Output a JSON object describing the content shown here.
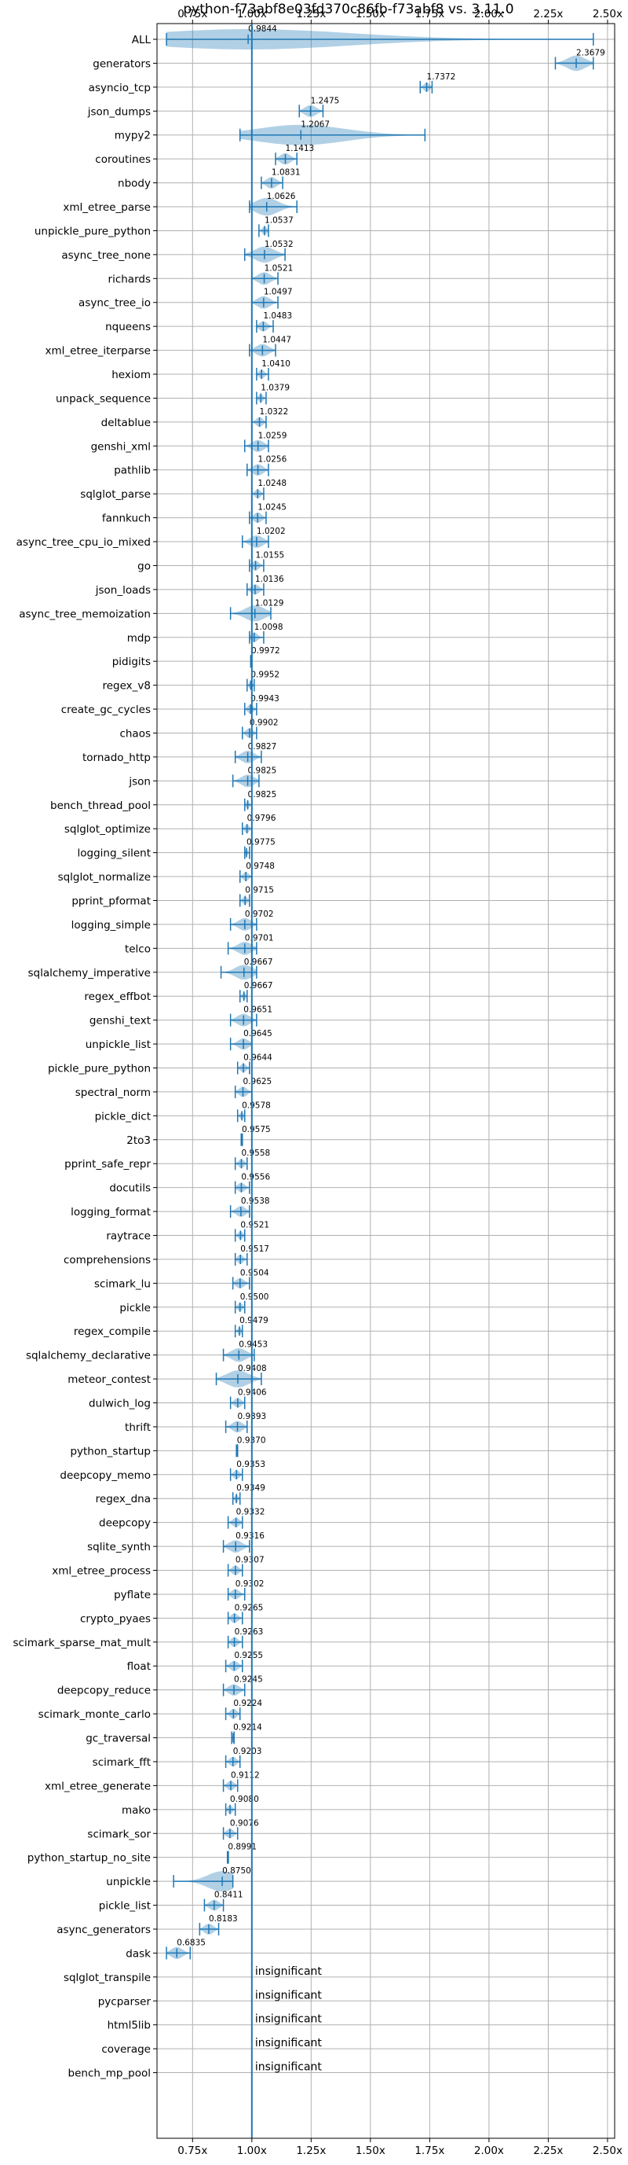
{
  "chart_data": {
    "type": "violin",
    "title": "python-f73abf8e03fd370c86fb-f73abf8 vs. 3.11.0",
    "xlim": [
      0.6,
      2.53
    ],
    "x_ticks": [
      0.75,
      1.0,
      1.25,
      1.5,
      1.75,
      2.0,
      2.25,
      2.5
    ],
    "x_tick_labels": [
      "0.75x",
      "1.00x",
      "1.25x",
      "1.50x",
      "1.75x",
      "2.00x",
      "2.25x",
      "2.50x"
    ],
    "reference_line": 1.0,
    "grid": true,
    "colors": {
      "line": "#1f77b4",
      "violin": "#1f77b4",
      "grid": "#b0b0b0",
      "axis": "#000000"
    },
    "benchmarks": [
      {
        "name": "ALL",
        "value": 0.9844,
        "label": "0.9844",
        "min": 0.64,
        "max": 2.44
      },
      {
        "name": "generators",
        "value": 2.3679,
        "label": "2.3679",
        "min": 2.28,
        "max": 2.44
      },
      {
        "name": "asyncio_tcp",
        "value": 1.7372,
        "label": "1.7372",
        "min": 1.71,
        "max": 1.76
      },
      {
        "name": "json_dumps",
        "value": 1.2475,
        "label": "1.2475",
        "min": 1.2,
        "max": 1.3
      },
      {
        "name": "mypy2",
        "value": 1.2067,
        "label": "1.2067",
        "min": 0.95,
        "max": 1.73
      },
      {
        "name": "coroutines",
        "value": 1.1413,
        "label": "1.1413",
        "min": 1.1,
        "max": 1.19
      },
      {
        "name": "nbody",
        "value": 1.0831,
        "label": "1.0831",
        "min": 1.04,
        "max": 1.13
      },
      {
        "name": "xml_etree_parse",
        "value": 1.0626,
        "label": "1.0626",
        "min": 0.99,
        "max": 1.19
      },
      {
        "name": "unpickle_pure_python",
        "value": 1.0537,
        "label": "1.0537",
        "min": 1.03,
        "max": 1.07
      },
      {
        "name": "async_tree_none",
        "value": 1.0532,
        "label": "1.0532",
        "min": 0.97,
        "max": 1.14
      },
      {
        "name": "richards",
        "value": 1.0521,
        "label": "1.0521",
        "min": 1.0,
        "max": 1.11
      },
      {
        "name": "async_tree_io",
        "value": 1.0497,
        "label": "1.0497",
        "min": 1.0,
        "max": 1.11
      },
      {
        "name": "nqueens",
        "value": 1.0483,
        "label": "1.0483",
        "min": 1.02,
        "max": 1.09
      },
      {
        "name": "xml_etree_iterparse",
        "value": 1.0447,
        "label": "1.0447",
        "min": 0.99,
        "max": 1.1
      },
      {
        "name": "hexiom",
        "value": 1.041,
        "label": "1.0410",
        "min": 1.02,
        "max": 1.07
      },
      {
        "name": "unpack_sequence",
        "value": 1.0379,
        "label": "1.0379",
        "min": 1.02,
        "max": 1.06
      },
      {
        "name": "deltablue",
        "value": 1.0322,
        "label": "1.0322",
        "min": 1.0,
        "max": 1.06
      },
      {
        "name": "genshi_xml",
        "value": 1.0259,
        "label": "1.0259",
        "min": 0.97,
        "max": 1.07
      },
      {
        "name": "pathlib",
        "value": 1.0256,
        "label": "1.0256",
        "min": 0.98,
        "max": 1.07
      },
      {
        "name": "sqlglot_parse",
        "value": 1.0248,
        "label": "1.0248",
        "min": 1.0,
        "max": 1.05
      },
      {
        "name": "fannkuch",
        "value": 1.0245,
        "label": "1.0245",
        "min": 0.99,
        "max": 1.06
      },
      {
        "name": "async_tree_cpu_io_mixed",
        "value": 1.0202,
        "label": "1.0202",
        "min": 0.96,
        "max": 1.07
      },
      {
        "name": "go",
        "value": 1.0155,
        "label": "1.0155",
        "min": 0.99,
        "max": 1.05
      },
      {
        "name": "json_loads",
        "value": 1.0136,
        "label": "1.0136",
        "min": 0.98,
        "max": 1.05
      },
      {
        "name": "async_tree_memoization",
        "value": 1.0129,
        "label": "1.0129",
        "min": 0.91,
        "max": 1.08
      },
      {
        "name": "mdp",
        "value": 1.0098,
        "label": "1.0098",
        "min": 0.99,
        "max": 1.05
      },
      {
        "name": "pidigits",
        "value": 0.9972,
        "label": "0.9972",
        "min": 0.995,
        "max": 1.0
      },
      {
        "name": "regex_v8",
        "value": 0.9952,
        "label": "0.9952",
        "min": 0.98,
        "max": 1.01
      },
      {
        "name": "create_gc_cycles",
        "value": 0.9943,
        "label": "0.9943",
        "min": 0.97,
        "max": 1.02
      },
      {
        "name": "chaos",
        "value": 0.9902,
        "label": "0.9902",
        "min": 0.96,
        "max": 1.02
      },
      {
        "name": "tornado_http",
        "value": 0.9827,
        "label": "0.9827",
        "min": 0.93,
        "max": 1.04
      },
      {
        "name": "json",
        "value": 0.9825,
        "label": "0.9825",
        "min": 0.92,
        "max": 1.03
      },
      {
        "name": "bench_thread_pool",
        "value": 0.9825,
        "label": "0.9825",
        "min": 0.97,
        "max": 1.0
      },
      {
        "name": "sqlglot_optimize",
        "value": 0.9796,
        "label": "0.9796",
        "min": 0.96,
        "max": 1.0
      },
      {
        "name": "logging_silent",
        "value": 0.9775,
        "label": "0.9775",
        "min": 0.97,
        "max": 0.99
      },
      {
        "name": "sqlglot_normalize",
        "value": 0.9748,
        "label": "0.9748",
        "min": 0.95,
        "max": 1.0
      },
      {
        "name": "pprint_pformat",
        "value": 0.9715,
        "label": "0.9715",
        "min": 0.95,
        "max": 0.99
      },
      {
        "name": "logging_simple",
        "value": 0.9702,
        "label": "0.9702",
        "min": 0.91,
        "max": 1.02
      },
      {
        "name": "telco",
        "value": 0.9701,
        "label": "0.9701",
        "min": 0.9,
        "max": 1.02
      },
      {
        "name": "sqlalchemy_imperative",
        "value": 0.9667,
        "label": "0.9667",
        "min": 0.87,
        "max": 1.02
      },
      {
        "name": "regex_effbot",
        "value": 0.9667,
        "label": "0.9667",
        "min": 0.95,
        "max": 0.98
      },
      {
        "name": "genshi_text",
        "value": 0.9651,
        "label": "0.9651",
        "min": 0.91,
        "max": 1.02
      },
      {
        "name": "unpickle_list",
        "value": 0.9645,
        "label": "0.9645",
        "min": 0.91,
        "max": 1.0
      },
      {
        "name": "pickle_pure_python",
        "value": 0.9644,
        "label": "0.9644",
        "min": 0.94,
        "max": 0.99
      },
      {
        "name": "spectral_norm",
        "value": 0.9625,
        "label": "0.9625",
        "min": 0.93,
        "max": 1.0
      },
      {
        "name": "pickle_dict",
        "value": 0.9578,
        "label": "0.9578",
        "min": 0.94,
        "max": 0.97
      },
      {
        "name": "2to3",
        "value": 0.9575,
        "label": "0.9575",
        "min": 0.955,
        "max": 0.96
      },
      {
        "name": "pprint_safe_repr",
        "value": 0.9558,
        "label": "0.9558",
        "min": 0.93,
        "max": 0.98
      },
      {
        "name": "docutils",
        "value": 0.9556,
        "label": "0.9556",
        "min": 0.93,
        "max": 0.99
      },
      {
        "name": "logging_format",
        "value": 0.9538,
        "label": "0.9538",
        "min": 0.91,
        "max": 0.99
      },
      {
        "name": "raytrace",
        "value": 0.9521,
        "label": "0.9521",
        "min": 0.93,
        "max": 0.97
      },
      {
        "name": "comprehensions",
        "value": 0.9517,
        "label": "0.9517",
        "min": 0.93,
        "max": 0.98
      },
      {
        "name": "scimark_lu",
        "value": 0.9504,
        "label": "0.9504",
        "min": 0.92,
        "max": 0.99
      },
      {
        "name": "pickle",
        "value": 0.95,
        "label": "0.9500",
        "min": 0.93,
        "max": 0.97
      },
      {
        "name": "regex_compile",
        "value": 0.9479,
        "label": "0.9479",
        "min": 0.93,
        "max": 0.96
      },
      {
        "name": "sqlalchemy_declarative",
        "value": 0.9453,
        "label": "0.9453",
        "min": 0.88,
        "max": 1.01
      },
      {
        "name": "meteor_contest",
        "value": 0.9408,
        "label": "0.9408",
        "min": 0.85,
        "max": 1.04
      },
      {
        "name": "dulwich_log",
        "value": 0.9406,
        "label": "0.9406",
        "min": 0.91,
        "max": 0.97
      },
      {
        "name": "thrift",
        "value": 0.9393,
        "label": "0.9393",
        "min": 0.89,
        "max": 0.98
      },
      {
        "name": "python_startup",
        "value": 0.937,
        "label": "0.9370",
        "min": 0.935,
        "max": 0.94
      },
      {
        "name": "deepcopy_memo",
        "value": 0.9353,
        "label": "0.9353",
        "min": 0.91,
        "max": 0.96
      },
      {
        "name": "regex_dna",
        "value": 0.9349,
        "label": "0.9349",
        "min": 0.92,
        "max": 0.95
      },
      {
        "name": "deepcopy",
        "value": 0.9332,
        "label": "0.9332",
        "min": 0.9,
        "max": 0.96
      },
      {
        "name": "sqlite_synth",
        "value": 0.9316,
        "label": "0.9316",
        "min": 0.88,
        "max": 0.99
      },
      {
        "name": "xml_etree_process",
        "value": 0.9307,
        "label": "0.9307",
        "min": 0.9,
        "max": 0.96
      },
      {
        "name": "pyflate",
        "value": 0.9302,
        "label": "0.9302",
        "min": 0.9,
        "max": 0.97
      },
      {
        "name": "crypto_pyaes",
        "value": 0.9265,
        "label": "0.9265",
        "min": 0.9,
        "max": 0.96
      },
      {
        "name": "scimark_sparse_mat_mult",
        "value": 0.9263,
        "label": "0.9263",
        "min": 0.9,
        "max": 0.96
      },
      {
        "name": "float",
        "value": 0.9255,
        "label": "0.9255",
        "min": 0.89,
        "max": 0.96
      },
      {
        "name": "deepcopy_reduce",
        "value": 0.9245,
        "label": "0.9245",
        "min": 0.88,
        "max": 0.97
      },
      {
        "name": "scimark_monte_carlo",
        "value": 0.9224,
        "label": "0.9224",
        "min": 0.89,
        "max": 0.95
      },
      {
        "name": "gc_traversal",
        "value": 0.9214,
        "label": "0.9214",
        "min": 0.915,
        "max": 0.925
      },
      {
        "name": "scimark_fft",
        "value": 0.9203,
        "label": "0.9203",
        "min": 0.89,
        "max": 0.95
      },
      {
        "name": "xml_etree_generate",
        "value": 0.9112,
        "label": "0.9112",
        "min": 0.88,
        "max": 0.94
      },
      {
        "name": "mako",
        "value": 0.908,
        "label": "0.9080",
        "min": 0.89,
        "max": 0.93
      },
      {
        "name": "scimark_sor",
        "value": 0.9076,
        "label": "0.9076",
        "min": 0.88,
        "max": 0.94
      },
      {
        "name": "python_startup_no_site",
        "value": 0.8991,
        "label": "0.8991",
        "min": 0.897,
        "max": 0.901
      },
      {
        "name": "unpickle",
        "value": 0.875,
        "label": "0.8750",
        "min": 0.67,
        "max": 0.92
      },
      {
        "name": "pickle_list",
        "value": 0.8411,
        "label": "0.8411",
        "min": 0.8,
        "max": 0.88
      },
      {
        "name": "async_generators",
        "value": 0.8183,
        "label": "0.8183",
        "min": 0.78,
        "max": 0.86
      },
      {
        "name": "dask",
        "value": 0.6835,
        "label": "0.6835",
        "min": 0.64,
        "max": 0.74
      },
      {
        "name": "sqlglot_transpile",
        "label": "insignificant"
      },
      {
        "name": "pycparser",
        "label": "insignificant"
      },
      {
        "name": "html5lib",
        "label": "insignificant"
      },
      {
        "name": "coverage",
        "label": "insignificant"
      },
      {
        "name": "bench_mp_pool",
        "label": "insignificant"
      }
    ]
  }
}
